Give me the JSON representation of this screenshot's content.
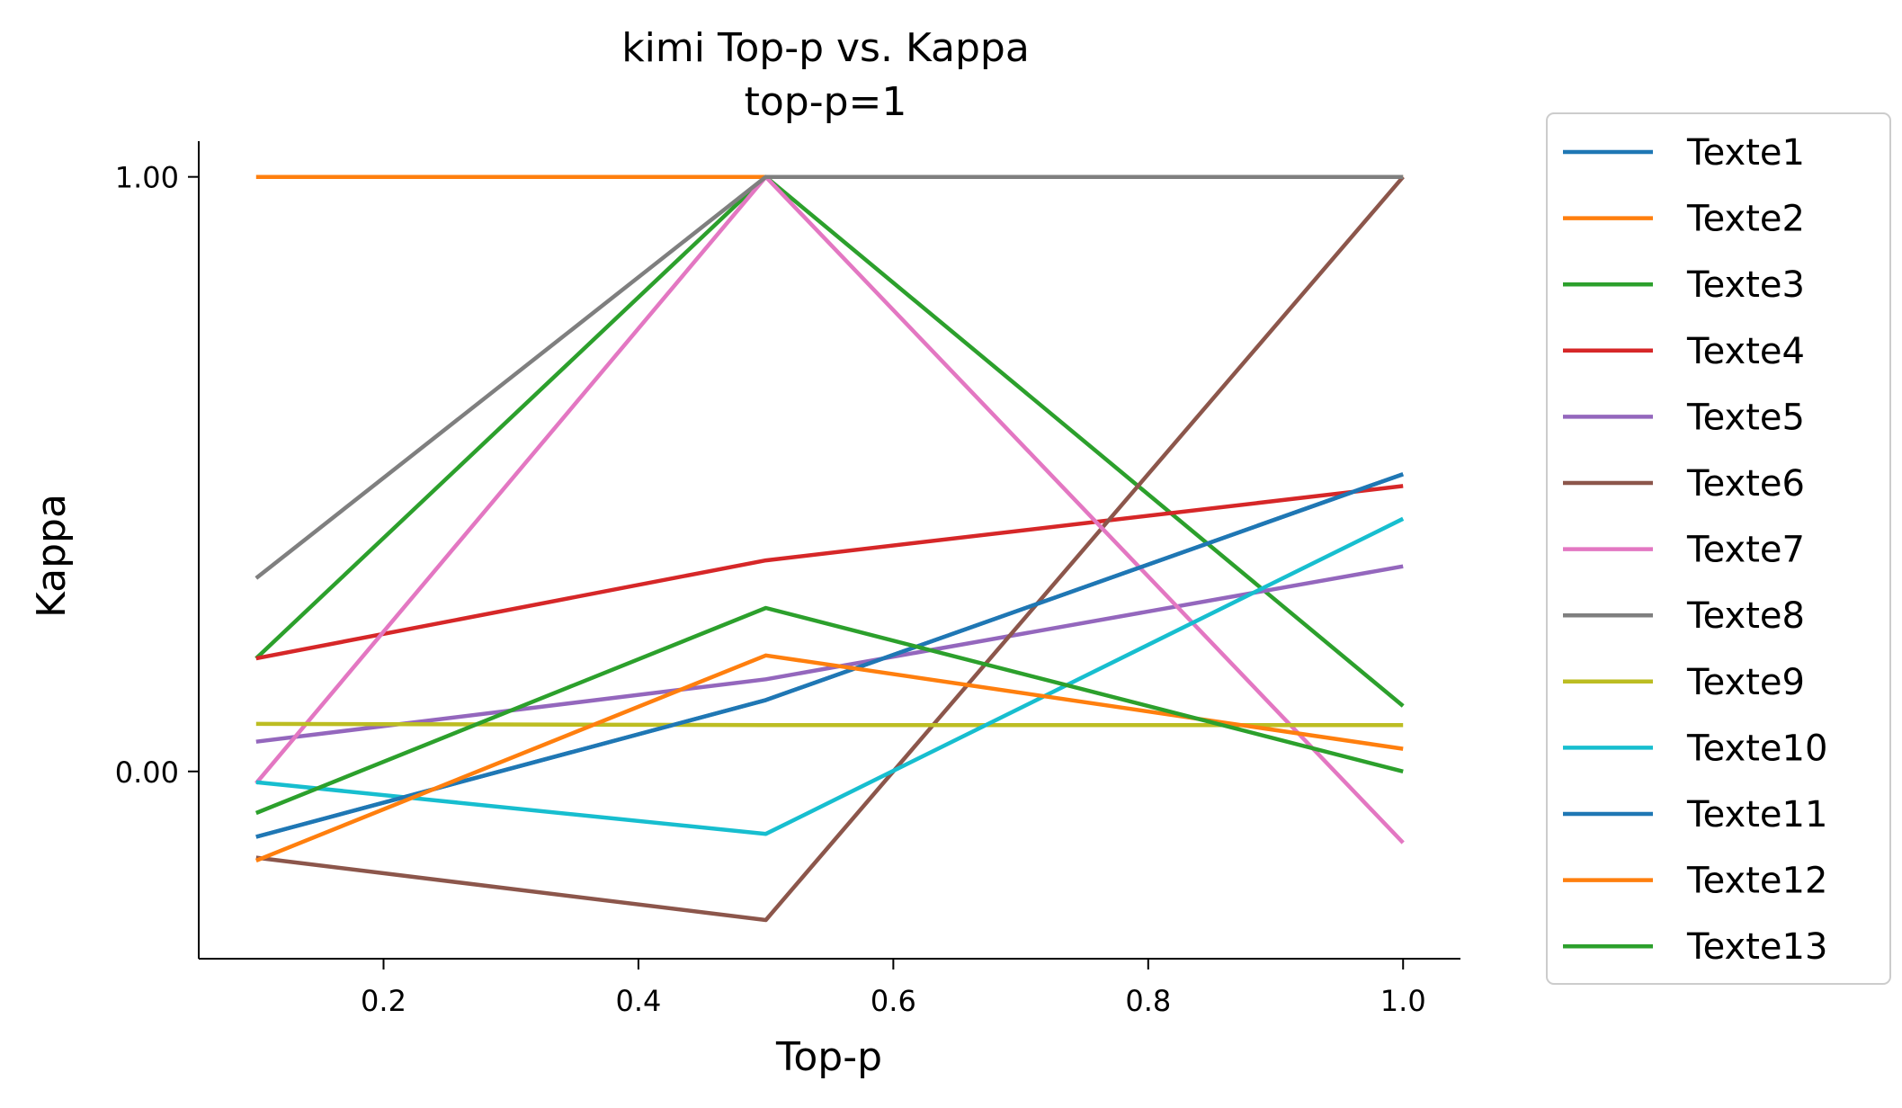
{
  "chart_data": {
    "type": "line",
    "title": "kimi Top-p vs. Kappa",
    "subtitle": "top-p=1",
    "xlabel": "Top-p",
    "ylabel": "Kappa",
    "x": [
      0.1,
      0.5,
      1.0
    ],
    "xlim": [
      0.055,
      1.045
    ],
    "ylim": [
      -0.315,
      1.06
    ],
    "xticks": [
      0.2,
      0.4,
      0.6,
      0.8,
      1.0
    ],
    "xtick_labels": [
      "0.2",
      "0.4",
      "0.6",
      "0.8",
      "1.0"
    ],
    "yticks": [
      0.0,
      1.0
    ],
    "ytick_labels": [
      "0.00",
      "1.00"
    ],
    "grid": false,
    "legend_position": "outside-right",
    "series": [
      {
        "name": "Texte1",
        "color": "#1f77b4",
        "values": [
          -0.11,
          0.12,
          0.5
        ]
      },
      {
        "name": "Texte2",
        "color": "#ff7f0e",
        "values": [
          1.0,
          1.0,
          1.0
        ]
      },
      {
        "name": "Texte3",
        "color": "#2ca02c",
        "values": [
          0.19,
          1.0,
          0.11
        ]
      },
      {
        "name": "Texte4",
        "color": "#d62728",
        "values": [
          0.19,
          0.355,
          0.48
        ]
      },
      {
        "name": "Texte5",
        "color": "#9467bd",
        "values": [
          0.05,
          0.155,
          0.345
        ]
      },
      {
        "name": "Texte6",
        "color": "#8c564b",
        "values": [
          -0.145,
          -0.25,
          1.0
        ]
      },
      {
        "name": "Texte7",
        "color": "#e377c2",
        "values": [
          -0.02,
          1.0,
          -0.12
        ]
      },
      {
        "name": "Texte8",
        "color": "#7f7f7f",
        "values": [
          0.325,
          1.0,
          1.0
        ]
      },
      {
        "name": "Texte9",
        "color": "#bcbd22",
        "values": [
          0.08,
          0.078,
          0.078
        ]
      },
      {
        "name": "Texte10",
        "color": "#17becf",
        "values": [
          -0.018,
          -0.105,
          0.425
        ]
      },
      {
        "name": "Texte11",
        "color": "#1f77b4",
        "values": [
          -0.11,
          0.12,
          0.5
        ]
      },
      {
        "name": "Texte12",
        "color": "#ff7f0e",
        "values": [
          -0.15,
          0.195,
          0.038
        ]
      },
      {
        "name": "Texte13",
        "color": "#2ca02c",
        "values": [
          -0.07,
          0.275,
          0.0
        ]
      }
    ]
  }
}
